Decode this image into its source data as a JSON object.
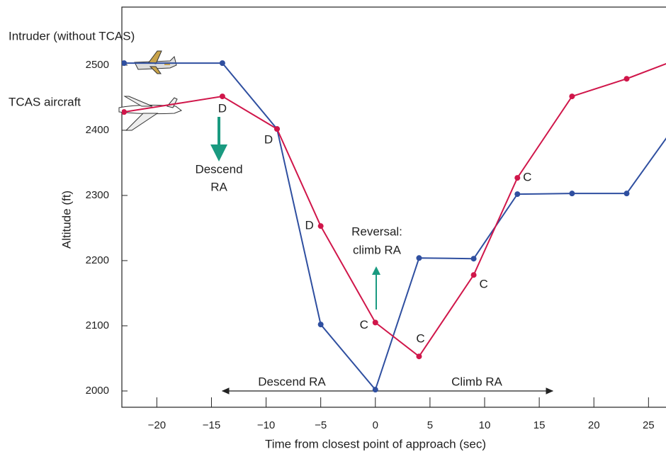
{
  "chart_data": {
    "type": "line",
    "x_label": "Time from closest point of approach (sec)",
    "y_label": "Altitude (ft)",
    "xlim": [
      -23.2,
      26.6
    ],
    "ylim": [
      1975,
      2589
    ],
    "xticks": [
      {
        "value": -20,
        "label": "−20"
      },
      {
        "value": -15,
        "label": "−15"
      },
      {
        "value": -10,
        "label": "−10"
      },
      {
        "value": -5,
        "label": "−5"
      },
      0,
      5,
      10,
      15,
      20,
      25
    ],
    "yticks": [
      2000,
      2100,
      2200,
      2300,
      2400,
      2500
    ],
    "series": [
      {
        "name": "Intruder (without TCAS)",
        "color": "#2f4fa0",
        "x": [
          -23,
          -14,
          -9,
          -5,
          0,
          4,
          9,
          13,
          18,
          23,
          28
        ],
        "values": [
          2503,
          2503,
          2402,
          2102,
          2002,
          2204,
          2203,
          2302,
          2303,
          2303,
          2420
        ]
      },
      {
        "name": "TCAS aircraft",
        "color": "#d0164a",
        "x": [
          -23,
          -14,
          -9,
          -5,
          0,
          4,
          9,
          13,
          18,
          23,
          28
        ],
        "values": [
          2428,
          2452,
          2402,
          2253,
          2105,
          2053,
          2178,
          2327,
          2452,
          2479,
          2511
        ],
        "point_labels": [
          null,
          "D",
          "D",
          "D",
          "C",
          "C",
          "C",
          "C",
          null,
          null,
          null
        ]
      }
    ],
    "annotations": [
      "Descend",
      "RA",
      "Reversal:",
      "climb RA",
      "Descend RA",
      "Climb RA"
    ]
  }
}
